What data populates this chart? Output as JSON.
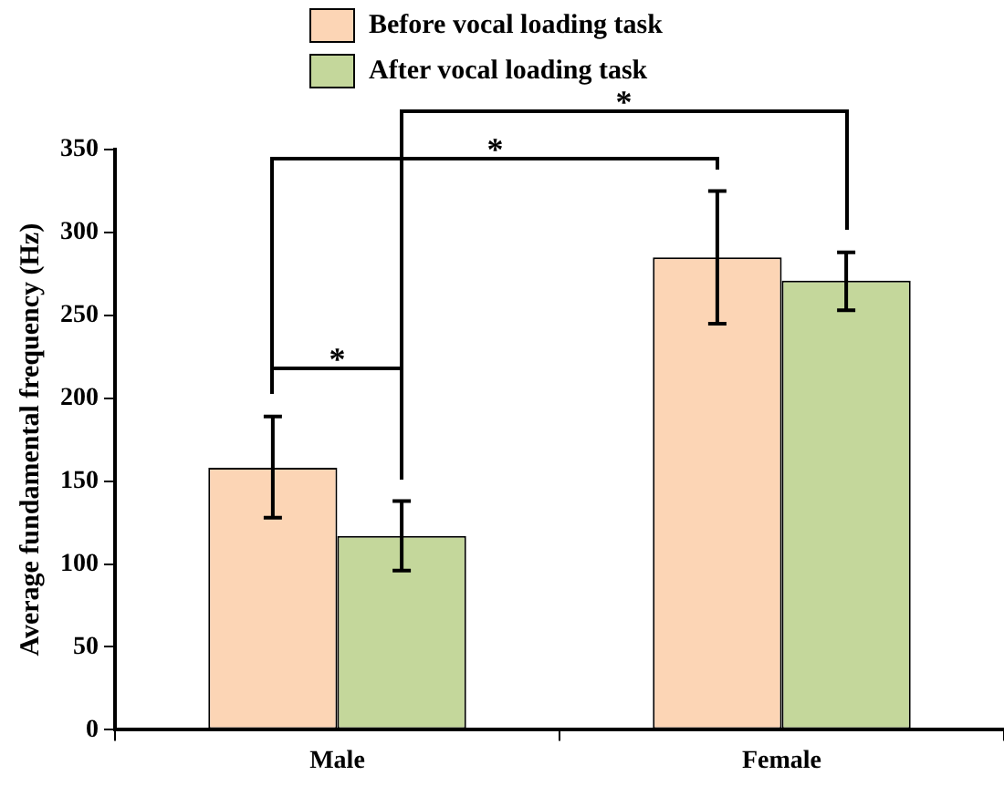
{
  "chart_data": {
    "type": "bar",
    "ylabel": "Average fundamental frequency (Hz)",
    "categories": [
      "Male",
      "Female"
    ],
    "series": [
      {
        "name": "Before vocal loading task",
        "color": "#fcd5b5",
        "values": [
          158,
          285
        ],
        "errors": [
          [
            128,
            189
          ],
          [
            245,
            325
          ]
        ]
      },
      {
        "name": "After vocal loading task",
        "color": "#c4d79b",
        "values": [
          117,
          271
        ],
        "errors": [
          [
            96,
            138
          ],
          [
            253,
            288
          ]
        ]
      }
    ],
    "ylim": [
      0,
      350
    ],
    "yticks": [
      0,
      50,
      100,
      150,
      200,
      250,
      300,
      350
    ],
    "grid": false,
    "legend": "top left",
    "annotations": [
      "*",
      "*",
      "*"
    ]
  }
}
